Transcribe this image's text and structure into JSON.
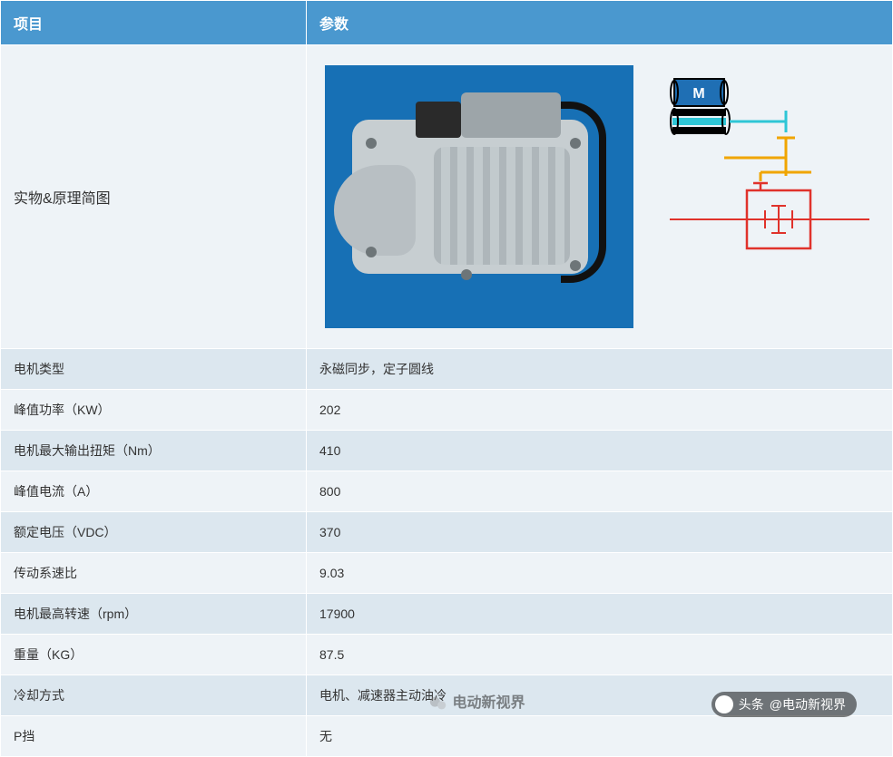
{
  "colors": {
    "header_bg": "#4a98cf",
    "row_even": "#eef3f7",
    "row_odd": "#dce7ef",
    "image_row_bg": "#eef3f7",
    "photo_bg": "#1770b5",
    "schem_motor_fill": "#1f6fb4",
    "schem_cyan": "#2ec6d6",
    "schem_yellow": "#f0a500",
    "schem_red": "#e0322b",
    "schem_black": "#000000"
  },
  "headers": {
    "item": "项目",
    "param": "参数"
  },
  "image_row_label": "实物&原理简图",
  "schematic": {
    "motor_label": "M"
  },
  "rows": [
    {
      "label": "电机类型",
      "value": "永磁同步，定子圆线"
    },
    {
      "label": "峰值功率（KW）",
      "value": "202"
    },
    {
      "label": "电机最大输出扭矩（Nm）",
      "value": "410"
    },
    {
      "label": "峰值电流（A）",
      "value": "800"
    },
    {
      "label": "额定电压（VDC）",
      "value": "370"
    },
    {
      "label": "传动系速比",
      "value": "9.03"
    },
    {
      "label": "电机最高转速（rpm）",
      "value": "17900"
    },
    {
      "label": "重量（KG）",
      "value": "87.5"
    },
    {
      "label": "冷却方式",
      "value": "电机、减速器主动油冷"
    },
    {
      "label": "P挡",
      "value": "无"
    }
  ],
  "watermark": {
    "toutiao_prefix": "头条",
    "toutiao_handle": "@电动新视界",
    "wechat_brand": "电动新视界"
  }
}
